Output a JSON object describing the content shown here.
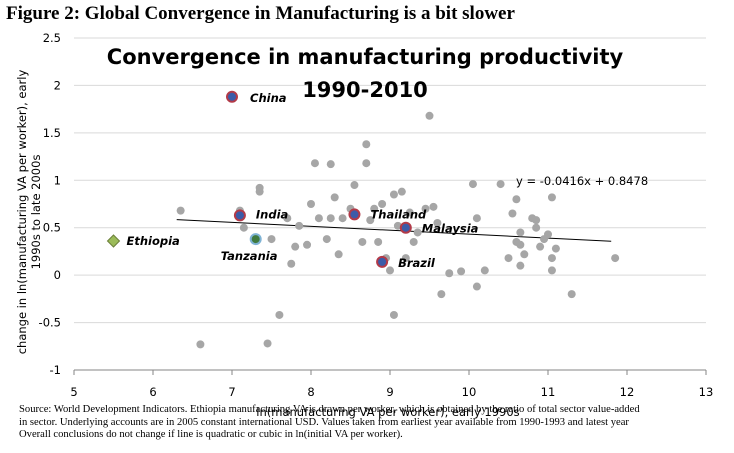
{
  "figure_caption": "Figure 2: Global Convergence in Manufacturing is a bit slower",
  "source_note": {
    "line1": "Source: World Development Indicators. Ethiopia manufacturing VA is drawn per worker, which is obtained by the ratio of total sector value-added",
    "line2": "in sector.  Underlying accounts are in 2005 constant international USD. Values taken from earliest year available from 1990-1993 and latest year",
    "line3": "Overall conclusions do not change if line is quadratic or cubic in ln(initial VA per worker)."
  },
  "colors": {
    "point": "#a6a6a6",
    "highlight_fill": "#3b5ba8",
    "highlight_edge": "#b23a48",
    "tanzania_fill": "#3f7a3f",
    "ethiopia_fill": "#9bbb59",
    "trendline": "#000000",
    "grid": "#d9d9d9"
  },
  "chart_data": {
    "type": "scatter",
    "title_line1": "Convergence in manufacturing productivity",
    "title_line2": "1990-2010",
    "xlabel": "ln(manufacturing VA per worker), early 1990s",
    "ylabel_line1": "change in ln(manufacturing VA per worker), early",
    "ylabel_line2": "1990s to late 2000s",
    "xlim": [
      5,
      13
    ],
    "ylim": [
      -1,
      2.5
    ],
    "x_ticks": [
      "5",
      "6",
      "7",
      "8",
      "9",
      "10",
      "11",
      "12",
      "13"
    ],
    "y_ticks": [
      "-1",
      "-0.5",
      "0",
      "0.5",
      "1",
      "1.5",
      "2",
      "2.5"
    ],
    "grid": "horizontal",
    "trendline": {
      "label": "y = -0.0416x + 0.8478",
      "slope": -0.0416,
      "intercept": 0.8478,
      "x_start": 6.3,
      "x_end": 11.8
    },
    "points": [
      [
        6.35,
        0.68
      ],
      [
        6.6,
        -0.73
      ],
      [
        7.1,
        0.68
      ],
      [
        7.15,
        0.5
      ],
      [
        7.35,
        0.88
      ],
      [
        7.35,
        0.92
      ],
      [
        7.5,
        0.38
      ],
      [
        7.45,
        -0.72
      ],
      [
        7.6,
        -0.42
      ],
      [
        7.7,
        0.6
      ],
      [
        7.75,
        0.12
      ],
      [
        7.8,
        0.3
      ],
      [
        7.85,
        0.52
      ],
      [
        7.95,
        0.32
      ],
      [
        8.0,
        0.75
      ],
      [
        8.05,
        1.18
      ],
      [
        8.1,
        0.6
      ],
      [
        8.2,
        0.38
      ],
      [
        8.25,
        0.6
      ],
      [
        8.25,
        1.17
      ],
      [
        8.3,
        0.82
      ],
      [
        8.35,
        0.22
      ],
      [
        8.4,
        0.6
      ],
      [
        8.5,
        0.7
      ],
      [
        8.55,
        0.95
      ],
      [
        8.65,
        0.35
      ],
      [
        8.7,
        1.38
      ],
      [
        8.7,
        1.18
      ],
      [
        8.75,
        0.58
      ],
      [
        8.8,
        0.7
      ],
      [
        8.85,
        0.35
      ],
      [
        8.9,
        0.75
      ],
      [
        8.95,
        0.18
      ],
      [
        9.0,
        0.05
      ],
      [
        9.05,
        -0.42
      ],
      [
        9.05,
        0.85
      ],
      [
        9.1,
        0.52
      ],
      [
        9.15,
        0.88
      ],
      [
        9.2,
        0.18
      ],
      [
        9.25,
        0.66
      ],
      [
        9.3,
        0.35
      ],
      [
        9.35,
        0.45
      ],
      [
        9.45,
        0.7
      ],
      [
        9.5,
        1.68
      ],
      [
        9.55,
        0.72
      ],
      [
        9.6,
        0.55
      ],
      [
        9.65,
        -0.2
      ],
      [
        9.75,
        0.02
      ],
      [
        9.9,
        0.04
      ],
      [
        10.05,
        0.96
      ],
      [
        10.1,
        -0.12
      ],
      [
        10.1,
        0.6
      ],
      [
        10.2,
        0.05
      ],
      [
        10.4,
        0.96
      ],
      [
        10.5,
        0.18
      ],
      [
        10.55,
        0.65
      ],
      [
        10.6,
        0.35
      ],
      [
        10.6,
        0.8
      ],
      [
        10.65,
        0.45
      ],
      [
        10.65,
        0.32
      ],
      [
        10.65,
        0.1
      ],
      [
        10.7,
        0.22
      ],
      [
        10.8,
        0.6
      ],
      [
        10.85,
        0.58
      ],
      [
        10.85,
        0.5
      ],
      [
        10.9,
        0.3
      ],
      [
        10.95,
        0.38
      ],
      [
        11.0,
        0.43
      ],
      [
        11.05,
        0.05
      ],
      [
        11.05,
        0.18
      ],
      [
        11.05,
        0.82
      ],
      [
        11.1,
        0.28
      ],
      [
        11.3,
        -0.2
      ],
      [
        11.85,
        0.18
      ]
    ],
    "highlighted": [
      {
        "name": "China",
        "x": 7.0,
        "y": 1.88,
        "label_dx": 18,
        "label_dy": 1
      },
      {
        "name": "India",
        "x": 7.1,
        "y": 0.63,
        "label_dx": 16,
        "label_dy": -1
      },
      {
        "name": "Thailand",
        "x": 8.55,
        "y": 0.64,
        "label_dx": 16,
        "label_dy": 0
      },
      {
        "name": "Malaysia",
        "x": 9.2,
        "y": 0.5,
        "label_dx": 16,
        "label_dy": 1
      },
      {
        "name": "Brazil",
        "x": 8.9,
        "y": 0.14,
        "label_dx": 16,
        "label_dy": 1
      }
    ],
    "tanzania": {
      "name": "Tanzania",
      "x": 7.3,
      "y": 0.38
    },
    "ethiopia": {
      "name": "Ethiopia",
      "x": 5.5,
      "y": 0.36
    }
  }
}
